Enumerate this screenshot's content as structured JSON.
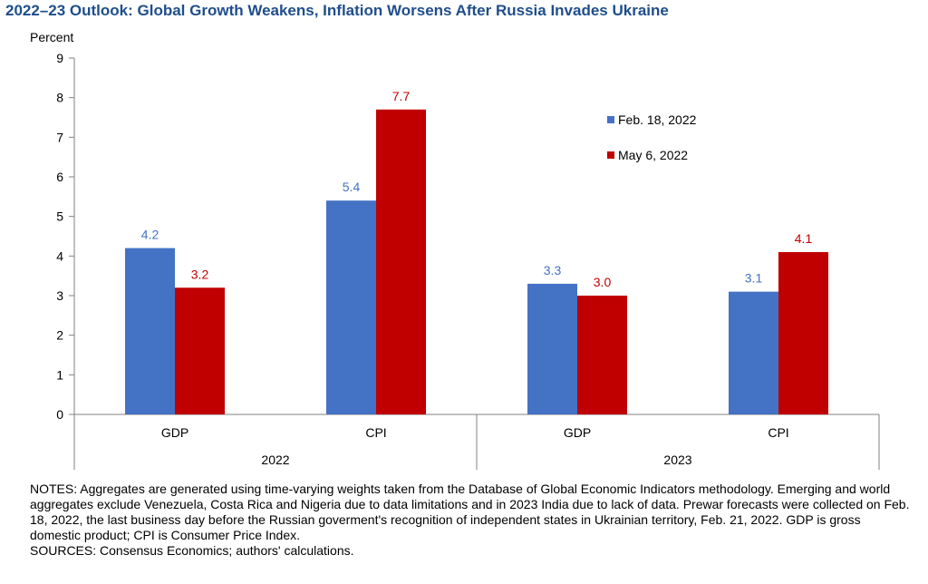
{
  "chart_data": {
    "type": "bar",
    "title": "2022–23 Outlook: Global Growth Weakens, Inflation Worsens After Russia Invades Ukraine",
    "ylabel": "Percent",
    "ylim": [
      0,
      9
    ],
    "yticks": [
      0,
      1,
      2,
      3,
      4,
      5,
      6,
      7,
      8,
      9
    ],
    "categories": [
      "GDP",
      "CPI",
      "GDP",
      "CPI"
    ],
    "groups": [
      {
        "label": "2022",
        "categories": [
          0,
          1
        ]
      },
      {
        "label": "2023",
        "categories": [
          2,
          3
        ]
      }
    ],
    "series": [
      {
        "name": "Feb. 18, 2022",
        "values": [
          4.2,
          5.4,
          3.3,
          3.1
        ],
        "labels": [
          "4.2",
          "5.4",
          "3.3",
          "3.1"
        ],
        "color": "#4472c4"
      },
      {
        "name": "May 6, 2022",
        "values": [
          3.2,
          7.7,
          3.0,
          4.1
        ],
        "labels": [
          "3.2",
          "7.7",
          "3.0",
          "4.1"
        ],
        "color": "#c00000"
      }
    ],
    "legend_position": "top-right",
    "grid": false
  },
  "notes": {
    "text": "NOTES: Aggregates are generated using time-varying weights taken from the Database of Global Economic Indicators methodology. Emerging and world aggregates exclude Venezuela, Costa Rica and Nigeria due to data limitations and in 2023 India due to lack of data. Prewar forecasts were collected on Feb. 18, 2022, the last business day before the Russian goverment's recognition of independent states in Ukrainian territory, Feb. 21, 2022. GDP is gross domestic product; CPI is Consumer Price Index.",
    "sources": "SOURCES: Consensus Economics; authors' calculations."
  }
}
